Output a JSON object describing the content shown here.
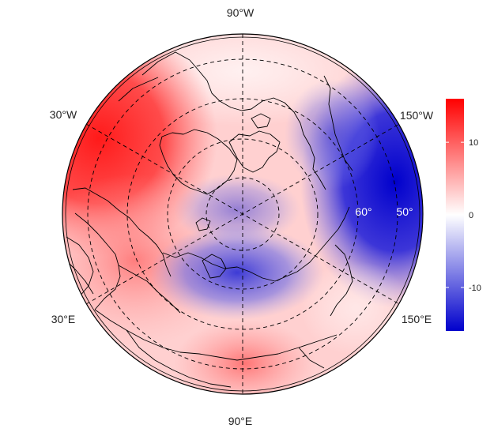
{
  "map": {
    "projection": "north-polar-stereographic",
    "meridian_labels": [
      {
        "id": "90w",
        "text": "90°W"
      },
      {
        "id": "150w",
        "text": "150°W"
      },
      {
        "id": "30w",
        "text": "30°W"
      },
      {
        "id": "30e",
        "text": "30°E"
      },
      {
        "id": "150e",
        "text": "150°E"
      },
      {
        "id": "90e",
        "text": "90°E"
      }
    ],
    "latitude_labels": [
      {
        "id": "60",
        "text": "60°"
      },
      {
        "id": "50",
        "text": "50°"
      }
    ],
    "graticule": "dashed",
    "coastlines": true
  },
  "colorbar": {
    "ticks": [
      {
        "value": 10,
        "label": "10"
      },
      {
        "value": 0,
        "label": "0"
      },
      {
        "value": -10,
        "label": "-10"
      }
    ],
    "range": [
      -16,
      16
    ],
    "colors": {
      "high": "#ff0000",
      "mid": "#ffffff",
      "low": "#0000cc"
    }
  }
}
